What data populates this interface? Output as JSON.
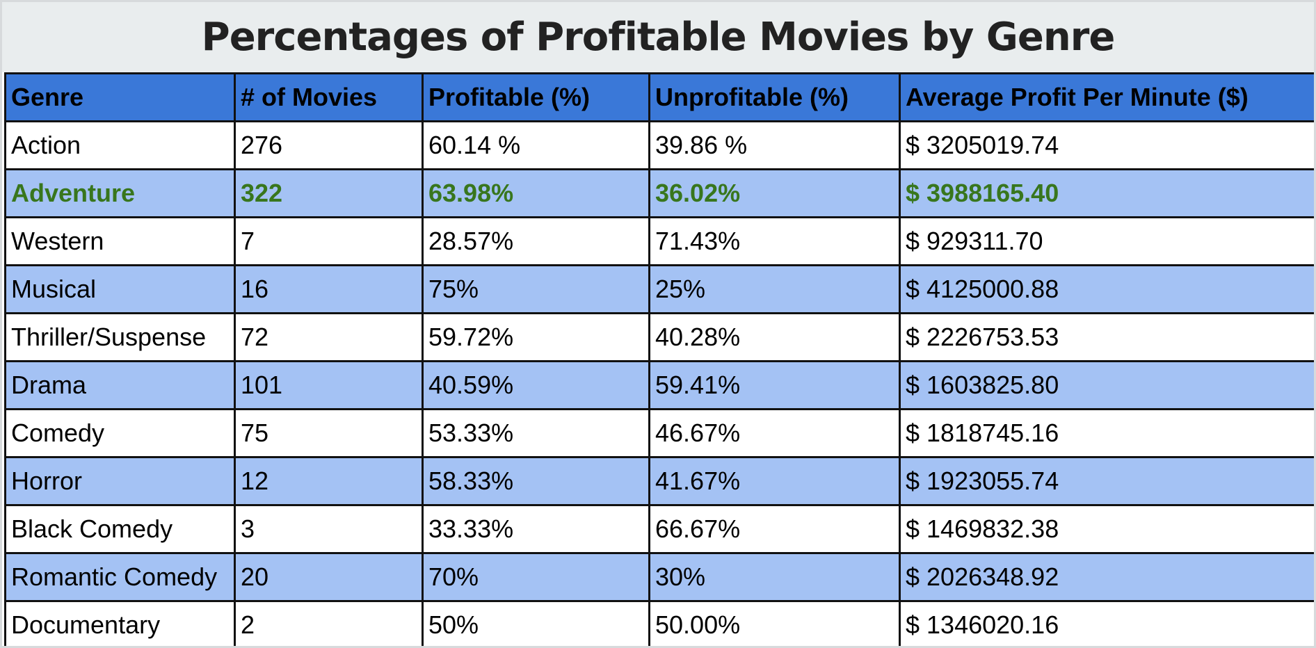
{
  "colors": {
    "header_background": "#3a78d8",
    "band_background": "#a4c2f4",
    "highlight_text": "#38761d",
    "title_background": "#e9edee"
  },
  "chart_data": {
    "type": "table",
    "title": "Percentages of Profitable Movies by Genre",
    "columns": [
      "Genre",
      "# of Movies",
      "Profitable (%)",
      "Unprofitable (%)",
      "Average Profit Per Minute ($)"
    ],
    "rows": [
      [
        "Action",
        "276",
        "60.14 %",
        "39.86 %",
        "$ 3205019.74"
      ],
      [
        "Adventure",
        "322",
        "63.98%",
        "36.02%",
        "$ 3988165.40"
      ],
      [
        "Western",
        "7",
        "28.57%",
        "71.43%",
        "$ 929311.70"
      ],
      [
        "Musical",
        "16",
        "75%",
        "25%",
        "$ 4125000.88"
      ],
      [
        "Thriller/Suspense",
        "72",
        "59.72%",
        "40.28%",
        "$ 2226753.53"
      ],
      [
        "Drama",
        "101",
        "40.59%",
        "59.41%",
        "$ 1603825.80"
      ],
      [
        "Comedy",
        "75",
        "53.33%",
        "46.67%",
        "$ 1818745.16"
      ],
      [
        "Horror",
        "12",
        "58.33%",
        "41.67%",
        "$ 1923055.74"
      ],
      [
        "Black Comedy",
        "3",
        "33.33%",
        "66.67%",
        "$ 1469832.38"
      ],
      [
        "Romantic Comedy",
        "20",
        "70%",
        "30%",
        "$ 2026348.92"
      ],
      [
        "Documentary",
        "2",
        "50%",
        "50.00%",
        "$ 1346020.16"
      ]
    ],
    "highlighted_row": "Adventure"
  }
}
